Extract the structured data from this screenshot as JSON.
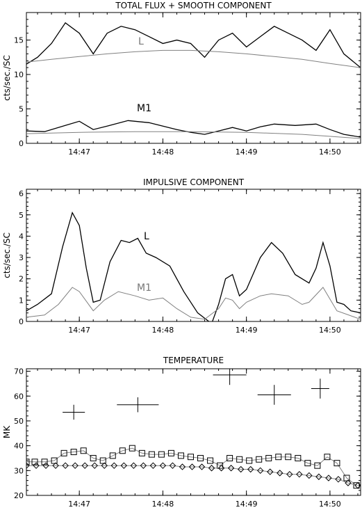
{
  "chart_data": [
    {
      "type": "line",
      "title": "TOTAL FLUX + SMOOTH COMPONENT",
      "ylabel": "cts/sec./SC",
      "xlabel": "",
      "xlim": [
        "14:46:22",
        "14:50:22"
      ],
      "ylim": [
        0,
        19
      ],
      "xticks": [
        "14:47",
        "14:48",
        "14:49",
        "14:50"
      ],
      "yticks": [
        0,
        5,
        10,
        15
      ],
      "series": [
        {
          "name": "L",
          "color": "#000000",
          "x": [
            "14:46:22",
            "14:46:30",
            "14:46:40",
            "14:46:50",
            "14:47:00",
            "14:47:10",
            "14:47:20",
            "14:47:30",
            "14:47:40",
            "14:47:50",
            "14:48:00",
            "14:48:10",
            "14:48:20",
            "14:48:30",
            "14:48:40",
            "14:48:50",
            "14:49:00",
            "14:49:10",
            "14:49:20",
            "14:49:30",
            "14:49:40",
            "14:49:50",
            "14:50:00",
            "14:50:10",
            "14:50:22"
          ],
          "y": [
            11.5,
            12.5,
            14.5,
            17.5,
            16.0,
            13.0,
            16.0,
            17.0,
            16.5,
            15.5,
            14.5,
            15.0,
            14.5,
            12.5,
            15.0,
            16.0,
            14.0,
            15.5,
            17.0,
            16.0,
            15.0,
            13.5,
            16.5,
            13.0,
            11.0
          ]
        },
        {
          "name": "",
          "color": "#808080",
          "x": [
            "14:46:22",
            "14:46:40",
            "14:47:00",
            "14:47:20",
            "14:47:40",
            "14:48:00",
            "14:48:20",
            "14:48:40",
            "14:49:00",
            "14:49:20",
            "14:49:40",
            "14:50:00",
            "14:50:22"
          ],
          "y": [
            11.8,
            12.2,
            12.6,
            13.0,
            13.3,
            13.5,
            13.5,
            13.3,
            13.0,
            12.6,
            12.2,
            11.6,
            11.0
          ]
        },
        {
          "name": "M1",
          "color": "#000000",
          "x": [
            "14:46:22",
            "14:46:35",
            "14:46:50",
            "14:47:00",
            "14:47:10",
            "14:47:20",
            "14:47:35",
            "14:47:50",
            "14:48:00",
            "14:48:10",
            "14:48:20",
            "14:48:30",
            "14:48:40",
            "14:48:50",
            "14:49:00",
            "14:49:10",
            "14:49:20",
            "14:49:35",
            "14:49:50",
            "14:50:00",
            "14:50:10",
            "14:50:22"
          ],
          "y": [
            1.8,
            1.7,
            2.6,
            3.2,
            2.0,
            2.5,
            3.3,
            3.0,
            2.5,
            2.0,
            1.6,
            1.3,
            1.8,
            2.3,
            1.8,
            2.4,
            2.8,
            2.6,
            2.8,
            2.0,
            1.3,
            0.9
          ]
        },
        {
          "name": "",
          "color": "#808080",
          "x": [
            "14:46:22",
            "14:47:00",
            "14:47:40",
            "14:48:20",
            "14:49:00",
            "14:49:40",
            "14:50:22"
          ],
          "y": [
            1.4,
            1.6,
            1.7,
            1.7,
            1.6,
            1.3,
            0.7
          ]
        }
      ]
    },
    {
      "type": "line",
      "title": "IMPULSIVE COMPONENT",
      "ylabel": "cts/sec./SC",
      "xlabel": "",
      "xlim": [
        "14:46:22",
        "14:50:22"
      ],
      "ylim": [
        0,
        6.2
      ],
      "xticks": [
        "14:47",
        "14:48",
        "14:49",
        "14:50"
      ],
      "yticks": [
        0,
        1,
        2,
        3,
        4,
        5,
        6
      ],
      "series": [
        {
          "name": "L",
          "color": "#000000",
          "x": [
            "14:46:22",
            "14:46:30",
            "14:46:40",
            "14:46:48",
            "14:46:55",
            "14:47:00",
            "14:47:05",
            "14:47:10",
            "14:47:15",
            "14:47:22",
            "14:47:30",
            "14:47:36",
            "14:47:42",
            "14:47:48",
            "14:47:55",
            "14:48:05",
            "14:48:15",
            "14:48:25",
            "14:48:35",
            "14:48:40",
            "14:48:45",
            "14:48:50",
            "14:48:55",
            "14:49:00",
            "14:49:10",
            "14:49:18",
            "14:49:26",
            "14:49:35",
            "14:49:45",
            "14:49:50",
            "14:49:55",
            "14:50:00",
            "14:50:05",
            "14:50:10",
            "14:50:15",
            "14:50:22"
          ],
          "y": [
            0.5,
            0.8,
            1.3,
            3.5,
            5.1,
            4.5,
            2.5,
            0.9,
            1.0,
            2.8,
            3.8,
            3.7,
            3.9,
            3.2,
            3.0,
            2.6,
            1.4,
            0.4,
            -0.1,
            0.8,
            2.0,
            2.2,
            1.2,
            1.5,
            3.0,
            3.7,
            3.2,
            2.2,
            1.8,
            2.5,
            3.7,
            2.6,
            0.9,
            0.8,
            0.5,
            0.4
          ]
        },
        {
          "name": "M1",
          "color": "#808080",
          "x": [
            "14:46:22",
            "14:46:35",
            "14:46:45",
            "14:46:55",
            "14:47:00",
            "14:47:10",
            "14:47:18",
            "14:47:28",
            "14:47:40",
            "14:47:50",
            "14:48:00",
            "14:48:10",
            "14:48:20",
            "14:48:30",
            "14:48:40",
            "14:48:45",
            "14:48:50",
            "14:48:55",
            "14:49:00",
            "14:49:10",
            "14:49:18",
            "14:49:30",
            "14:49:40",
            "14:49:45",
            "14:49:55",
            "14:50:05",
            "14:50:22"
          ],
          "y": [
            0.2,
            0.3,
            0.8,
            1.6,
            1.4,
            0.5,
            1.0,
            1.4,
            1.2,
            1.0,
            1.1,
            0.6,
            0.2,
            0.1,
            0.6,
            1.1,
            1.0,
            0.6,
            0.9,
            1.2,
            1.3,
            1.2,
            0.8,
            0.9,
            1.6,
            0.5,
            0.1
          ]
        }
      ]
    },
    {
      "type": "scatter",
      "title": "TEMPERATURE",
      "ylabel": "MK",
      "xlabel": "",
      "xlim": [
        "14:46:22",
        "14:50:22"
      ],
      "ylim": [
        20,
        71
      ],
      "xticks": [
        "14:47",
        "14:48",
        "14:49",
        "14:50"
      ],
      "yticks": [
        20,
        30,
        40,
        50,
        60,
        70
      ],
      "series": [
        {
          "name": "",
          "marker": "cross",
          "x": [
            "14:46:56",
            "14:47:42",
            "14:48:48",
            "14:49:20",
            "14:49:53"
          ],
          "y": [
            53.5,
            56.5,
            68.5,
            60.5,
            63.0
          ],
          "x_err_sec": [
            8,
            15,
            12,
            12,
            0
          ],
          "y_err": [
            3,
            3,
            4,
            4,
            4
          ]
        },
        {
          "name": "",
          "marker": "square",
          "x": [
            "14:46:22",
            "14:46:28",
            "14:46:35",
            "14:46:42",
            "14:46:49",
            "14:46:56",
            "14:47:03",
            "14:47:10",
            "14:47:17",
            "14:47:24",
            "14:47:31",
            "14:47:38",
            "14:47:45",
            "14:47:52",
            "14:47:59",
            "14:48:06",
            "14:48:13",
            "14:48:20",
            "14:48:27",
            "14:48:34",
            "14:48:41",
            "14:48:48",
            "14:48:55",
            "14:49:02",
            "14:49:09",
            "14:49:16",
            "14:49:23",
            "14:49:30",
            "14:49:37",
            "14:49:44",
            "14:49:51",
            "14:49:58",
            "14:50:05",
            "14:50:12",
            "14:50:19"
          ],
          "y": [
            33.5,
            33.5,
            33.5,
            34,
            37,
            37.5,
            38,
            35,
            34,
            36,
            38,
            39,
            37,
            36.5,
            36.5,
            37,
            36,
            35.5,
            35,
            34,
            32,
            35,
            34.5,
            34,
            34.5,
            35,
            35.5,
            35.5,
            35,
            33,
            32,
            35.5,
            33,
            27,
            24
          ]
        },
        {
          "name": "",
          "marker": "diamond",
          "x": [
            "14:46:22",
            "14:46:29",
            "14:46:36",
            "14:46:43",
            "14:46:50",
            "14:46:57",
            "14:47:04",
            "14:47:11",
            "14:47:18",
            "14:47:25",
            "14:47:32",
            "14:47:39",
            "14:47:46",
            "14:47:53",
            "14:48:00",
            "14:48:07",
            "14:48:14",
            "14:48:21",
            "14:48:28",
            "14:48:35",
            "14:48:42",
            "14:48:49",
            "14:48:56",
            "14:49:03",
            "14:49:10",
            "14:49:17",
            "14:49:24",
            "14:49:31",
            "14:49:38",
            "14:49:45",
            "14:49:52",
            "14:49:59",
            "14:50:06",
            "14:50:13",
            "14:50:20"
          ],
          "y": [
            32,
            32,
            32,
            32,
            32,
            32,
            32,
            32,
            32,
            32,
            32,
            32,
            32,
            32,
            32,
            32,
            31.5,
            31.5,
            31.5,
            31,
            31,
            31,
            30.5,
            30.5,
            30,
            29.5,
            29,
            28.5,
            28.5,
            28,
            27.5,
            27,
            26.5,
            25,
            24
          ]
        }
      ]
    }
  ],
  "labels": {
    "panel1_L": "L",
    "panel1_M1": "M1",
    "panel2_L": "L",
    "panel2_M1": "M1"
  }
}
